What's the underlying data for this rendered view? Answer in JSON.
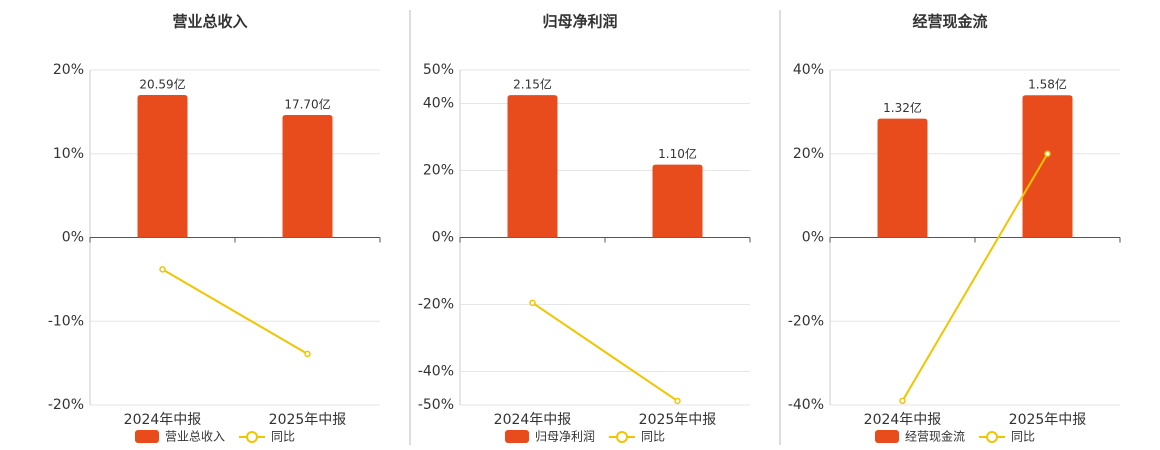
{
  "chart_data": [
    {
      "type": "combo",
      "title": "营业总收入",
      "categories": [
        "2024年中报",
        "2025年中报"
      ],
      "ylim": [
        -20,
        20
      ],
      "yticks": [
        {
          "value": 20,
          "label": "20%"
        },
        {
          "value": 10,
          "label": "10%"
        },
        {
          "value": 0,
          "label": "0%"
        },
        {
          "value": -10,
          "label": "-10%"
        },
        {
          "value": -20,
          "label": "-20%"
        }
      ],
      "y2lim": [
        -24.2,
        24.2
      ],
      "grid": true,
      "series": [
        {
          "name": "营业总收入",
          "type": "bar",
          "axis": "y2",
          "color": "#e84c1c",
          "values": [
            20.59,
            17.7
          ],
          "value_labels": [
            "20.59亿",
            "17.70亿"
          ]
        },
        {
          "name": "同比",
          "type": "line",
          "color": "#f2c500",
          "values": [
            -3.8,
            -13.9
          ]
        }
      ]
    },
    {
      "type": "combo",
      "title": "归母净利润",
      "categories": [
        "2024年中报",
        "2025年中报"
      ],
      "ylim": [
        -50,
        50
      ],
      "yticks": [
        {
          "value": 50,
          "label": "50%"
        },
        {
          "value": 40,
          "label": "40%"
        },
        {
          "value": 20,
          "label": "20%"
        },
        {
          "value": 0,
          "label": "0%"
        },
        {
          "value": -20,
          "label": "-20%"
        },
        {
          "value": -40,
          "label": "-40%"
        },
        {
          "value": -50,
          "label": "-50%"
        }
      ],
      "y2lim": [
        -2.53,
        2.53
      ],
      "grid": true,
      "series": [
        {
          "name": "归母净利润",
          "type": "bar",
          "axis": "y2",
          "color": "#e84c1c",
          "values": [
            2.15,
            1.1
          ],
          "value_labels": [
            "2.15亿",
            "1.10亿"
          ]
        },
        {
          "name": "同比",
          "type": "line",
          "color": "#f2c500",
          "values": [
            -19.5,
            -48.8
          ]
        }
      ]
    },
    {
      "type": "combo",
      "title": "经营现金流",
      "categories": [
        "2024年中报",
        "2025年中报"
      ],
      "ylim": [
        -40,
        40
      ],
      "yticks": [
        {
          "value": 40,
          "label": "40%"
        },
        {
          "value": 20,
          "label": "20%"
        },
        {
          "value": 0,
          "label": "0%"
        },
        {
          "value": -20,
          "label": "-20%"
        },
        {
          "value": -40,
          "label": "-40%"
        }
      ],
      "y2lim": [
        -1.86,
        1.86
      ],
      "grid": true,
      "series": [
        {
          "name": "经营现金流",
          "type": "bar",
          "axis": "y2",
          "color": "#e84c1c",
          "values": [
            1.32,
            1.58
          ],
          "value_labels": [
            "1.32亿",
            "1.58亿"
          ]
        },
        {
          "name": "同比",
          "type": "line",
          "color": "#f2c500",
          "values": [
            -39.0,
            20.0
          ]
        }
      ]
    }
  ]
}
